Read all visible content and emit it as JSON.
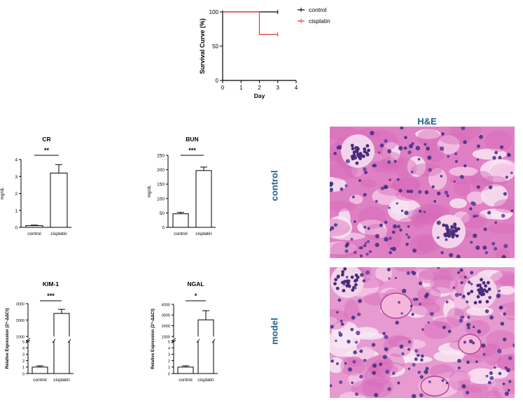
{
  "chart_data": [
    {
      "type": "line",
      "id": "survival",
      "xlabel": "Day",
      "ylabel": "Survival Curve (%)",
      "xlim": [
        0,
        4
      ],
      "ylim": [
        0,
        100
      ],
      "x_ticks": [
        "0",
        "1",
        "2",
        "3",
        "4"
      ],
      "y_ticks": [
        "0",
        "50",
        "100"
      ],
      "legend_position": "top-right",
      "series": [
        {
          "name": "control",
          "color": "#000000",
          "steps": [
            [
              0,
              100
            ],
            [
              3,
              100
            ]
          ]
        },
        {
          "name": "cisplatin",
          "color": "#e53935",
          "steps": [
            [
              0,
              100
            ],
            [
              2,
              100
            ],
            [
              2,
              67
            ],
            [
              3,
              67
            ]
          ]
        }
      ]
    },
    {
      "type": "bar",
      "id": "cr",
      "title": "CR",
      "ylabel": "mg/dL",
      "categories": [
        "control",
        "cisplatin"
      ],
      "values": [
        0.1,
        3.2
      ],
      "errors": [
        0.03,
        0.5
      ],
      "ylim": [
        0,
        4
      ],
      "y_ticks": [
        "0",
        "1",
        "2",
        "3",
        "4"
      ],
      "significance": "**"
    },
    {
      "type": "bar",
      "id": "bun",
      "title": "BUN",
      "ylabel": "mg/dL",
      "categories": [
        "control",
        "cisplatin"
      ],
      "values": [
        47,
        197
      ],
      "errors": [
        5,
        12
      ],
      "ylim": [
        0,
        250
      ],
      "y_ticks": [
        "0",
        "50",
        "100",
        "150",
        "200",
        "250"
      ],
      "significance": "***"
    },
    {
      "type": "bar",
      "id": "kim1",
      "title": "KIM-1",
      "ylabel": "Relative Expression (2^-ΔΔCt)",
      "categories": [
        "control",
        "cisplatin"
      ],
      "values": [
        1,
        2400
      ],
      "errors": [
        0.2,
        250
      ],
      "broken_axis": true,
      "lower_ticks": [
        "0",
        "1",
        "2",
        "3",
        "4",
        "5"
      ],
      "upper_ticks": [
        "1000",
        "2000",
        "3000"
      ],
      "significance": "***"
    },
    {
      "type": "bar",
      "id": "ngal",
      "title": "NGAL",
      "ylabel": "Relative Expression (2^-ΔΔCt)",
      "categories": [
        "control",
        "cisplatin"
      ],
      "values": [
        1,
        2550
      ],
      "errors": [
        0.2,
        850
      ],
      "broken_axis": true,
      "lower_ticks": [
        "0",
        "1",
        "2",
        "3",
        "4",
        "5"
      ],
      "upper_ticks": [
        "1000",
        "2000",
        "3000",
        "4000"
      ],
      "significance": "*"
    }
  ],
  "histology": {
    "title": "H&E",
    "rows": [
      "control",
      "model"
    ]
  }
}
